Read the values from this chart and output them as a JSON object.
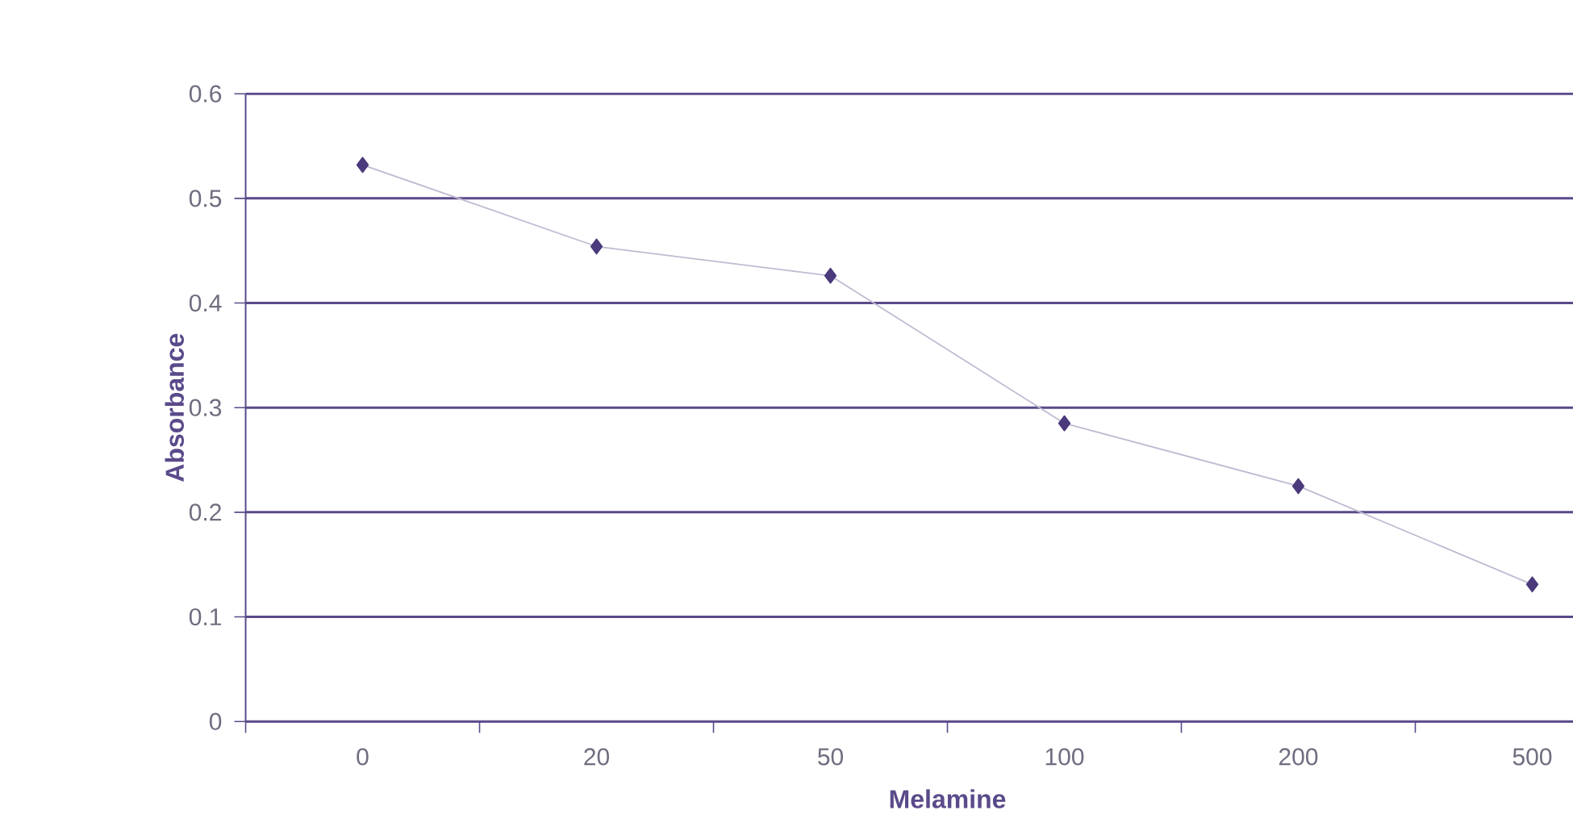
{
  "chart_data": {
    "type": "line",
    "xlabel": "Melamine",
    "ylabel": "Absorbance",
    "categories": [
      "0",
      "20",
      "50",
      "100",
      "200",
      "500"
    ],
    "series": [
      {
        "color": "#4b3a7c",
        "values": [
          0.532,
          0.454,
          0.426,
          0.285,
          0.225,
          0.131
        ]
      }
    ],
    "ylim": [
      0,
      0.6
    ],
    "yticks": [
      0,
      0.1,
      0.2,
      0.3,
      0.4,
      0.5,
      0.6
    ],
    "grid": "y",
    "marker": "diamond",
    "legend": false
  }
}
